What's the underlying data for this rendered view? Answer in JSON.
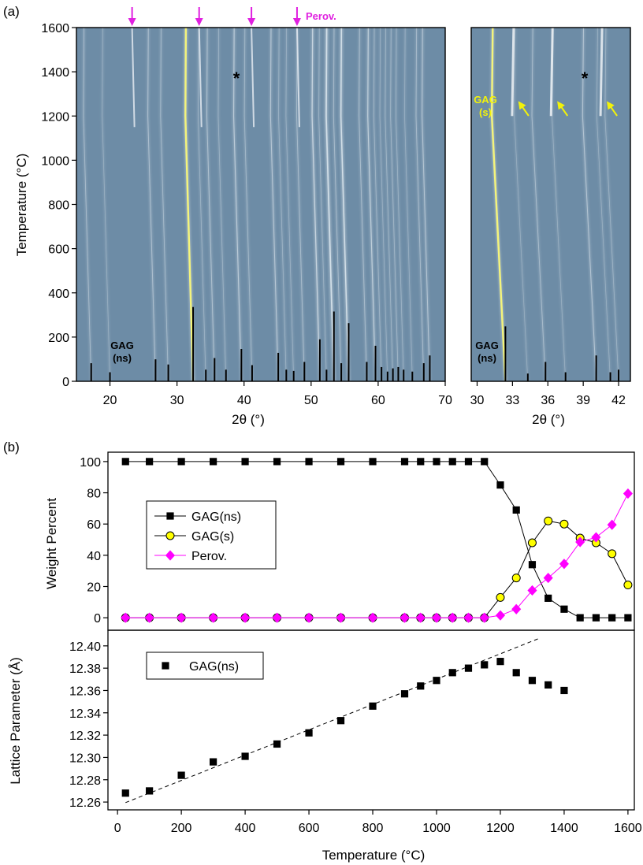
{
  "panel_a": {
    "label": "(a)",
    "ylabel": "Temperature (°C)",
    "xlabel": "2θ (°)",
    "perov_label": "Perov.",
    "gag_ns_line1": "GAG",
    "gag_ns_line2": "(ns)",
    "gag_s_line1": "GAG",
    "gag_s_line2": "(s)",
    "star": "*",
    "colors": {
      "background": "#6d8ca6",
      "peak": "#dde7ee",
      "gag_peak": "#f4f47a",
      "perov_arrow": "#e020e0",
      "gag_s_arrow": "#f2f20a"
    }
  },
  "panel_b": {
    "label": "(b)",
    "top_ylabel": "Weight Percent",
    "bottom_ylabel": "Lattice Parameter (Å)",
    "xlabel": "Temperature (°C)",
    "colors": {
      "gag_ns": "#000000",
      "gag_s": "#ffff00",
      "perov": "#ff00ff"
    }
  },
  "chart_data": [
    {
      "type": "heatmap",
      "panel": "a-left",
      "xlabel": "2θ (°)",
      "ylabel": "Temperature (°C)",
      "xlim": [
        15,
        70
      ],
      "ylim": [
        0,
        1600
      ],
      "xticks": [
        20,
        30,
        40,
        50,
        60,
        70
      ],
      "yticks": [
        0,
        200,
        400,
        600,
        800,
        1000,
        1200,
        1400,
        1600
      ],
      "perov_peaks": [
        23.3,
        33.3,
        41.1,
        47.9
      ],
      "annotations": [
        "Perov.",
        "GAG (ns)",
        "*"
      ],
      "reference_ticks": [
        {
          "x": 17.2,
          "h": 28
        },
        {
          "x": 20.0,
          "h": 14
        },
        {
          "x": 26.8,
          "h": 34
        },
        {
          "x": 28.7,
          "h": 26
        },
        {
          "x": 32.4,
          "h": 115
        },
        {
          "x": 34.3,
          "h": 18
        },
        {
          "x": 35.6,
          "h": 36
        },
        {
          "x": 37.3,
          "h": 18
        },
        {
          "x": 39.6,
          "h": 50
        },
        {
          "x": 41.2,
          "h": 25
        },
        {
          "x": 45.1,
          "h": 44
        },
        {
          "x": 46.3,
          "h": 18
        },
        {
          "x": 47.4,
          "h": 16
        },
        {
          "x": 49.0,
          "h": 30
        },
        {
          "x": 51.3,
          "h": 65
        },
        {
          "x": 52.3,
          "h": 18
        },
        {
          "x": 53.4,
          "h": 108
        },
        {
          "x": 54.5,
          "h": 28
        },
        {
          "x": 55.6,
          "h": 90
        },
        {
          "x": 58.3,
          "h": 30
        },
        {
          "x": 59.6,
          "h": 55
        },
        {
          "x": 60.5,
          "h": 22
        },
        {
          "x": 61.4,
          "h": 15
        },
        {
          "x": 62.2,
          "h": 20
        },
        {
          "x": 63.0,
          "h": 22
        },
        {
          "x": 63.8,
          "h": 18
        },
        {
          "x": 65.1,
          "h": 15
        },
        {
          "x": 66.8,
          "h": 28
        },
        {
          "x": 67.7,
          "h": 40
        }
      ]
    },
    {
      "type": "heatmap",
      "panel": "a-right",
      "xlabel": "2θ (°)",
      "ylabel": "Temperature (°C)",
      "xlim": [
        29.5,
        43
      ],
      "ylim": [
        0,
        1600
      ],
      "xticks": [
        30,
        33,
        36,
        39,
        42
      ],
      "gag_s_peaks": [
        33.1,
        36.4,
        40.6
      ],
      "annotations": [
        "GAG (s)",
        "GAG (ns)",
        "*"
      ],
      "reference_ticks": [
        {
          "x": 32.4,
          "h": 85
        },
        {
          "x": 34.3,
          "h": 12
        },
        {
          "x": 35.8,
          "h": 30
        },
        {
          "x": 37.5,
          "h": 14
        },
        {
          "x": 40.1,
          "h": 40
        },
        {
          "x": 41.3,
          "h": 14
        },
        {
          "x": 42.0,
          "h": 18
        }
      ]
    },
    {
      "type": "line",
      "panel": "b-top",
      "xlabel": "",
      "ylabel": "Weight Percent",
      "xlim": [
        -30,
        1620
      ],
      "ylim": [
        -8,
        106
      ],
      "yticks": [
        0,
        20,
        40,
        60,
        80,
        100
      ],
      "legend": "upper-left",
      "x": [
        25,
        100,
        200,
        300,
        400,
        500,
        600,
        700,
        800,
        900,
        950,
        1000,
        1050,
        1100,
        1150,
        1200,
        1250,
        1300,
        1350,
        1400,
        1450,
        1500,
        1550,
        1600
      ],
      "series": [
        {
          "name": "GAG(ns)",
          "marker": "square",
          "color": "#000000",
          "values": [
            100,
            100,
            100,
            100,
            100,
            100,
            100,
            100,
            100,
            100,
            100,
            100,
            100,
            100,
            100,
            85,
            69,
            34,
            12.5,
            5.5,
            0,
            0,
            0,
            0
          ]
        },
        {
          "name": "GAG(s)",
          "marker": "circle",
          "color": "#ffff00",
          "values": [
            0,
            0,
            0,
            0,
            0,
            0,
            0,
            0,
            0,
            0,
            0,
            0,
            0,
            0,
            0,
            13,
            25.5,
            48,
            62,
            60,
            51,
            48,
            41,
            21
          ]
        },
        {
          "name": "Perov.",
          "marker": "diamond",
          "color": "#ff00ff",
          "values": [
            0,
            0,
            0,
            0,
            0,
            0,
            0,
            0,
            0,
            0,
            0,
            0,
            0,
            0,
            0,
            1.5,
            5.5,
            17.5,
            25.5,
            34.5,
            48.5,
            51.5,
            59.5,
            79.5
          ]
        }
      ]
    },
    {
      "type": "scatter",
      "panel": "b-bottom",
      "xlabel": "Temperature (°C)",
      "ylabel": "Lattice Parameter (Å)",
      "xlim": [
        -30,
        1620
      ],
      "ylim": [
        12.253,
        12.414
      ],
      "xticks": [
        0,
        200,
        400,
        600,
        800,
        1000,
        1200,
        1400,
        1600
      ],
      "yticks": [
        12.26,
        12.28,
        12.3,
        12.32,
        12.34,
        12.36,
        12.38,
        12.4
      ],
      "legend": "upper-left",
      "series": [
        {
          "name": "GAG(ns)",
          "marker": "square",
          "color": "#000000",
          "x": [
            25,
            100,
            200,
            300,
            400,
            500,
            600,
            700,
            800,
            900,
            950,
            1000,
            1050,
            1100,
            1150,
            1200,
            1250,
            1300,
            1350,
            1400
          ],
          "values": [
            12.268,
            12.27,
            12.284,
            12.296,
            12.301,
            12.312,
            12.322,
            12.333,
            12.346,
            12.357,
            12.364,
            12.369,
            12.376,
            12.38,
            12.383,
            12.386,
            12.376,
            12.369,
            12.365,
            12.36
          ]
        }
      ],
      "trend_line": {
        "style": "dashed",
        "x": [
          25,
          1320
        ],
        "y": [
          12.2595,
          12.4065
        ]
      }
    }
  ]
}
